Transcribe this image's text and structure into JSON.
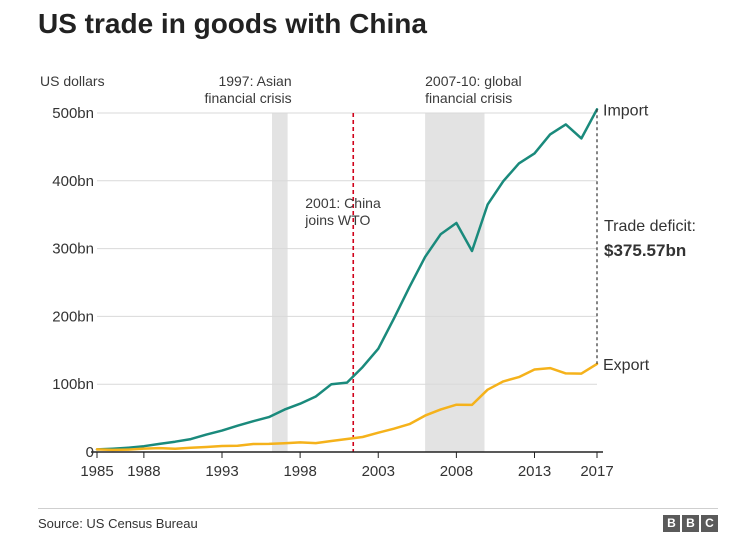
{
  "title": "US trade in goods with China",
  "source": "Source: US Census Bureau",
  "logo_letters": [
    "B",
    "B",
    "C"
  ],
  "colors": {
    "import": "#1a8a7c",
    "export": "#f5b21b",
    "wto_line": "#d0021b",
    "shading": "#e3e3e3",
    "grid": "#d9d9d9",
    "axis": "#222222"
  },
  "chart_data": {
    "type": "line",
    "title": "US trade in goods with China",
    "ylabel": "US dollars",
    "xlabel": "",
    "xlim": [
      1985,
      2017
    ],
    "ylim": [
      0,
      500
    ],
    "x_ticks": [
      1985,
      1988,
      1993,
      1998,
      2003,
      2008,
      2013,
      2017
    ],
    "y_ticks": [
      {
        "value": 0,
        "label": "0"
      },
      {
        "value": 100,
        "label": "100bn"
      },
      {
        "value": 200,
        "label": "200bn"
      },
      {
        "value": 300,
        "label": "300bn"
      },
      {
        "value": 400,
        "label": "400bn"
      },
      {
        "value": 500,
        "label": "500bn"
      }
    ],
    "series": [
      {
        "name": "Import",
        "label": "Import",
        "x": [
          1985,
          1986,
          1987,
          1988,
          1989,
          1990,
          1991,
          1992,
          1993,
          1994,
          1995,
          1996,
          1997,
          1998,
          1999,
          2000,
          2001,
          2002,
          2003,
          2004,
          2005,
          2006,
          2007,
          2008,
          2009,
          2010,
          2011,
          2012,
          2013,
          2014,
          2015,
          2016,
          2017
        ],
        "values": [
          3.9,
          4.8,
          6.3,
          8.5,
          12.0,
          15.2,
          19.0,
          25.7,
          31.5,
          38.8,
          45.5,
          51.5,
          62.6,
          71.2,
          81.8,
          100.0,
          102.3,
          125.2,
          152.4,
          196.7,
          243.5,
          287.8,
          321.4,
          337.8,
          296.4,
          364.9,
          399.4,
          425.6,
          440.4,
          468.5,
          483.2,
          462.6,
          505.5
        ]
      },
      {
        "name": "Export",
        "label": "Export",
        "x": [
          1985,
          1986,
          1987,
          1988,
          1989,
          1990,
          1991,
          1992,
          1993,
          1994,
          1995,
          1996,
          1997,
          1998,
          1999,
          2000,
          2001,
          2002,
          2003,
          2004,
          2005,
          2006,
          2007,
          2008,
          2009,
          2010,
          2011,
          2012,
          2013,
          2014,
          2015,
          2016,
          2017
        ],
        "values": [
          3.9,
          3.1,
          3.5,
          5.0,
          5.8,
          4.8,
          6.3,
          7.4,
          8.8,
          9.3,
          11.8,
          12.0,
          12.9,
          14.2,
          13.1,
          16.2,
          19.2,
          22.1,
          28.4,
          34.4,
          41.2,
          53.7,
          62.9,
          69.7,
          69.5,
          91.9,
          104.1,
          110.5,
          121.7,
          123.7,
          115.9,
          115.6,
          130.0
        ]
      }
    ],
    "bands": [
      {
        "x_start": 1996.2,
        "x_end": 1997.2,
        "label_lines": [
          "1997: Asian",
          "financial crisis"
        ]
      },
      {
        "x_start": 2006.0,
        "x_end": 2009.8,
        "label_lines": [
          "2007-10: global",
          "financial crisis"
        ]
      }
    ],
    "markers": [
      {
        "x": 2001.4,
        "label_lines": [
          "2001: China",
          "joins WTO"
        ]
      }
    ],
    "deficit": {
      "x": 2017,
      "from": 130.0,
      "to": 505.5,
      "label": "Trade deficit:",
      "value": "$375.57bn"
    }
  }
}
